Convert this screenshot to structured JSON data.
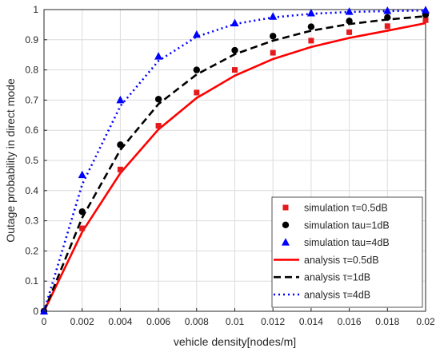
{
  "chart_data": {
    "type": "line",
    "xlabel": "vehicle density[nodes/m]",
    "ylabel": "Outage probability in direct mode",
    "xlim": [
      0,
      0.02
    ],
    "ylim": [
      0,
      1
    ],
    "x_ticks": [
      "0",
      "0.002",
      "0.004",
      "0.006",
      "0.008",
      "0.01",
      "0.012",
      "0.014",
      "0.016",
      "0.018",
      "0.02"
    ],
    "y_ticks": [
      "0",
      "0.1",
      "0.2",
      "0.3",
      "0.4",
      "0.5",
      "0.6",
      "0.7",
      "0.8",
      "0.9",
      "1"
    ],
    "grid": true,
    "legend_position": "bottom-right",
    "x": [
      0,
      0.002,
      0.004,
      0.006,
      0.008,
      0.01,
      0.012,
      0.014,
      0.016,
      0.018,
      0.02
    ],
    "series": [
      {
        "name": "simulation τ=0.5dB",
        "kind": "marker",
        "marker": "square",
        "color": "#e41a1c",
        "values": [
          0,
          0.275,
          0.47,
          0.615,
          0.725,
          0.8,
          0.857,
          0.897,
          0.925,
          0.945,
          0.965
        ]
      },
      {
        "name": "simulation tau=1dB",
        "kind": "marker",
        "marker": "circle",
        "color": "#000000",
        "values": [
          0,
          0.33,
          0.552,
          0.703,
          0.8,
          0.865,
          0.912,
          0.943,
          0.962,
          0.974,
          0.983
        ]
      },
      {
        "name": "simulation tau=4dB",
        "kind": "marker",
        "marker": "triangle",
        "color": "#0000ff",
        "values": [
          0,
          0.452,
          0.7,
          0.845,
          0.917,
          0.955,
          0.977,
          0.988,
          0.993,
          0.996,
          0.998
        ]
      },
      {
        "name": "analysis τ=0.5dB",
        "kind": "line",
        "dash": "solid",
        "color": "#ff0000",
        "values": [
          0,
          0.263,
          0.458,
          0.603,
          0.707,
          0.781,
          0.836,
          0.876,
          0.906,
          0.93,
          0.955
        ]
      },
      {
        "name": "analysis τ=1dB",
        "kind": "line",
        "dash": "dashed",
        "color": "#000000",
        "values": [
          0,
          0.31,
          0.535,
          0.687,
          0.785,
          0.852,
          0.897,
          0.93,
          0.952,
          0.967,
          0.978
        ]
      },
      {
        "name": "analysis τ=4dB",
        "kind": "line",
        "dash": "dotted",
        "color": "#0000ff",
        "values": [
          0,
          0.42,
          0.68,
          0.83,
          0.91,
          0.952,
          0.974,
          0.986,
          0.992,
          0.995,
          0.997
        ]
      }
    ]
  }
}
